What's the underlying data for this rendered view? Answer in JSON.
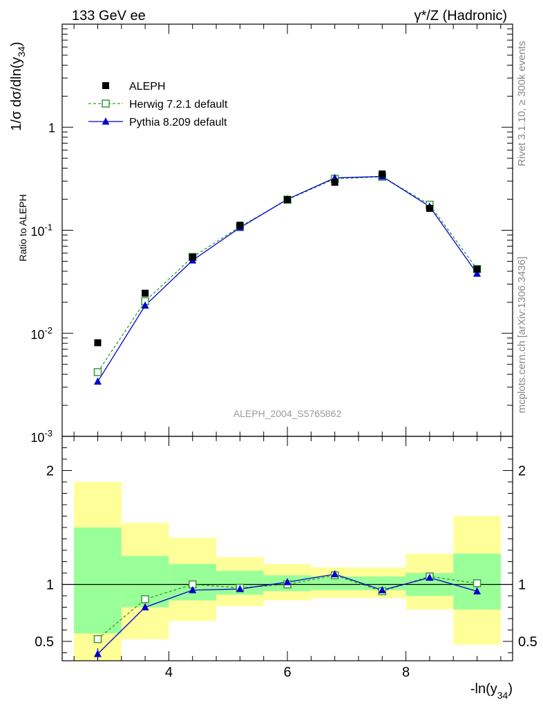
{
  "header": {
    "left_title": "133 GeV ee",
    "right_title": "γ*/Z (Hadronic)"
  },
  "side_text": {
    "rivet": "Rivet 3.1.10, ≥ 300k events",
    "mcplots": "mcplots.cern.ch [arXiv:1306.3436]"
  },
  "analysis_label": "ALEPH_2004_S5765862",
  "colors": {
    "data": "#000000",
    "herwig": "#339933",
    "pythia": "#0000cc",
    "band_inner": "#99ff99",
    "band_outer": "#ffff99"
  },
  "chart_data": [
    {
      "type": "scatter",
      "title": "133 GeV ee",
      "ylabel": "1/σ  dσ/dln(y34)",
      "yscale": "log",
      "ylim": [
        0.001,
        10
      ],
      "xlim": [
        2.2,
        9.8
      ],
      "ytick_labels": [
        "10^-3",
        "10^-2",
        "10^-1",
        "1"
      ],
      "legend": [
        "ALEPH",
        "Herwig 7.2.1 default",
        "Pythia 8.209 default"
      ],
      "legend_position": "top-left",
      "x": [
        2.8,
        3.6,
        4.4,
        5.2,
        6.0,
        6.8,
        7.6,
        8.4,
        9.2
      ],
      "series": [
        {
          "name": "ALEPH",
          "marker": "filled-square",
          "values": [
            0.0081,
            0.0245,
            0.055,
            0.112,
            0.198,
            0.292,
            0.352,
            0.163,
            0.042
          ]
        },
        {
          "name": "Herwig 7.2.1 default",
          "marker": "open-square",
          "line": "dashed",
          "values": [
            0.0042,
            0.0205,
            0.055,
            0.108,
            0.198,
            0.316,
            0.33,
            0.177,
            0.042
          ]
        },
        {
          "name": "Pythia 8.209 default",
          "marker": "filled-triangle",
          "line": "solid",
          "values": [
            0.0034,
            0.0186,
            0.051,
            0.106,
            0.2,
            0.322,
            0.333,
            0.17,
            0.038
          ]
        }
      ]
    },
    {
      "type": "line",
      "title": "Ratio to ALEPH",
      "xlabel": "-ln(y34)",
      "ylabel": "Ratio to ALEPH",
      "ylim": [
        0.33,
        2.3
      ],
      "xlim": [
        2.2,
        9.8
      ],
      "xtick_labels": [
        "4",
        "6",
        "8"
      ],
      "ytick_labels": [
        "0.5",
        "1",
        "2"
      ],
      "bin_edges": [
        2.4,
        3.2,
        4.0,
        4.8,
        5.6,
        6.4,
        7.2,
        8.0,
        8.8,
        9.6
      ],
      "band_inner": [
        [
          0.57,
          1.5
        ],
        [
          0.8,
          1.25
        ],
        [
          0.86,
          1.18
        ],
        [
          0.91,
          1.12
        ],
        [
          0.94,
          1.08
        ],
        [
          0.95,
          1.07
        ],
        [
          0.95,
          1.07
        ],
        [
          0.9,
          1.1
        ],
        [
          0.78,
          1.27
        ]
      ],
      "band_outer": [
        [
          0.33,
          1.9
        ],
        [
          0.52,
          1.54
        ],
        [
          0.68,
          1.41
        ],
        [
          0.81,
          1.24
        ],
        [
          0.86,
          1.18
        ],
        [
          0.88,
          1.15
        ],
        [
          0.88,
          1.15
        ],
        [
          0.78,
          1.27
        ],
        [
          0.47,
          1.6
        ]
      ],
      "x": [
        2.8,
        3.6,
        4.4,
        5.2,
        6.0,
        6.8,
        7.6,
        8.4,
        9.2
      ],
      "series": [
        {
          "name": "Herwig 7.2.1 default",
          "marker": "open-square",
          "line": "dashed",
          "values": [
            0.52,
            0.87,
            1.0,
            0.97,
            1.0,
            1.08,
            0.94,
            1.07,
            1.01
          ]
        },
        {
          "name": "Pythia 8.209 default",
          "marker": "filled-triangle",
          "line": "solid",
          "values": [
            0.39,
            0.8,
            0.95,
            0.96,
            1.02,
            1.09,
            0.95,
            1.06,
            0.94
          ]
        }
      ]
    }
  ]
}
